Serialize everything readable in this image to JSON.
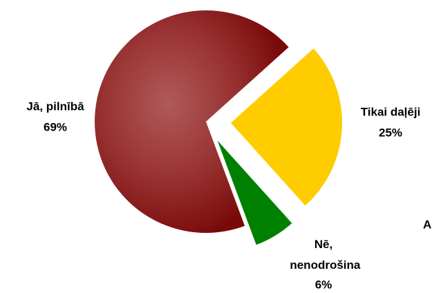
{
  "chart_data": {
    "type": "pie",
    "categories": [
      "Jā, pilnībā",
      "Tikai daļēji",
      "Nē, nenodrošina"
    ],
    "values": [
      69,
      25,
      6
    ],
    "value_labels": [
      "69%",
      "25%",
      "6%"
    ],
    "colors": [
      "#8b1414",
      "#ffcc00",
      "#008000"
    ],
    "annotation": "A"
  }
}
